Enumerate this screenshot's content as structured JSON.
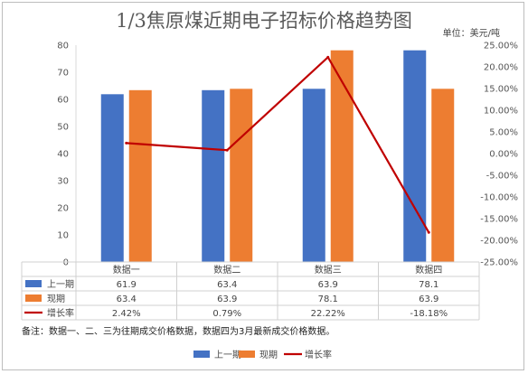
{
  "chart_data": {
    "type": "bar",
    "title": "1/3焦原煤近期电子招标价格趋势图",
    "unit": "单位：美元/吨",
    "categories": [
      "数据一",
      "数据二",
      "数据三",
      "数据四"
    ],
    "series": [
      {
        "name": "上一期",
        "kind": "bar",
        "axis": "left",
        "values": [
          61.9,
          63.4,
          63.9,
          78.1
        ],
        "labels": [
          "61.9",
          "63.4",
          "63.9",
          "78.1"
        ],
        "color": "#4472C4"
      },
      {
        "name": "现期",
        "kind": "bar",
        "axis": "left",
        "values": [
          63.4,
          63.9,
          78.1,
          63.9
        ],
        "labels": [
          "63.4",
          "63.9",
          "78.1",
          "63.9"
        ],
        "color": "#ED7D31"
      },
      {
        "name": "增长率",
        "kind": "line",
        "axis": "right",
        "values": [
          2.42,
          0.79,
          22.22,
          -18.18
        ],
        "labels": [
          "2.42%",
          "0.79%",
          "22.22%",
          "-18.18%"
        ],
        "color": "#C00000"
      }
    ],
    "y_left": {
      "min": 0,
      "max": 80,
      "step": 10,
      "ticks": [
        "0",
        "10",
        "20",
        "30",
        "40",
        "50",
        "60",
        "70",
        "80"
      ]
    },
    "y_right": {
      "min": -25,
      "max": 25,
      "step": 5,
      "ticks": [
        "-25.00%",
        "-20.00%",
        "-15.00%",
        "-10.00%",
        "-5.00%",
        "0.00%",
        "5.00%",
        "10.00%",
        "15.00%",
        "20.00%",
        "25.00%"
      ]
    },
    "grid": false,
    "legend_position": "bottom",
    "note": "备注：数据一、二、三为往期成交价格数据，数据四为3月最新成交价格数据。"
  }
}
